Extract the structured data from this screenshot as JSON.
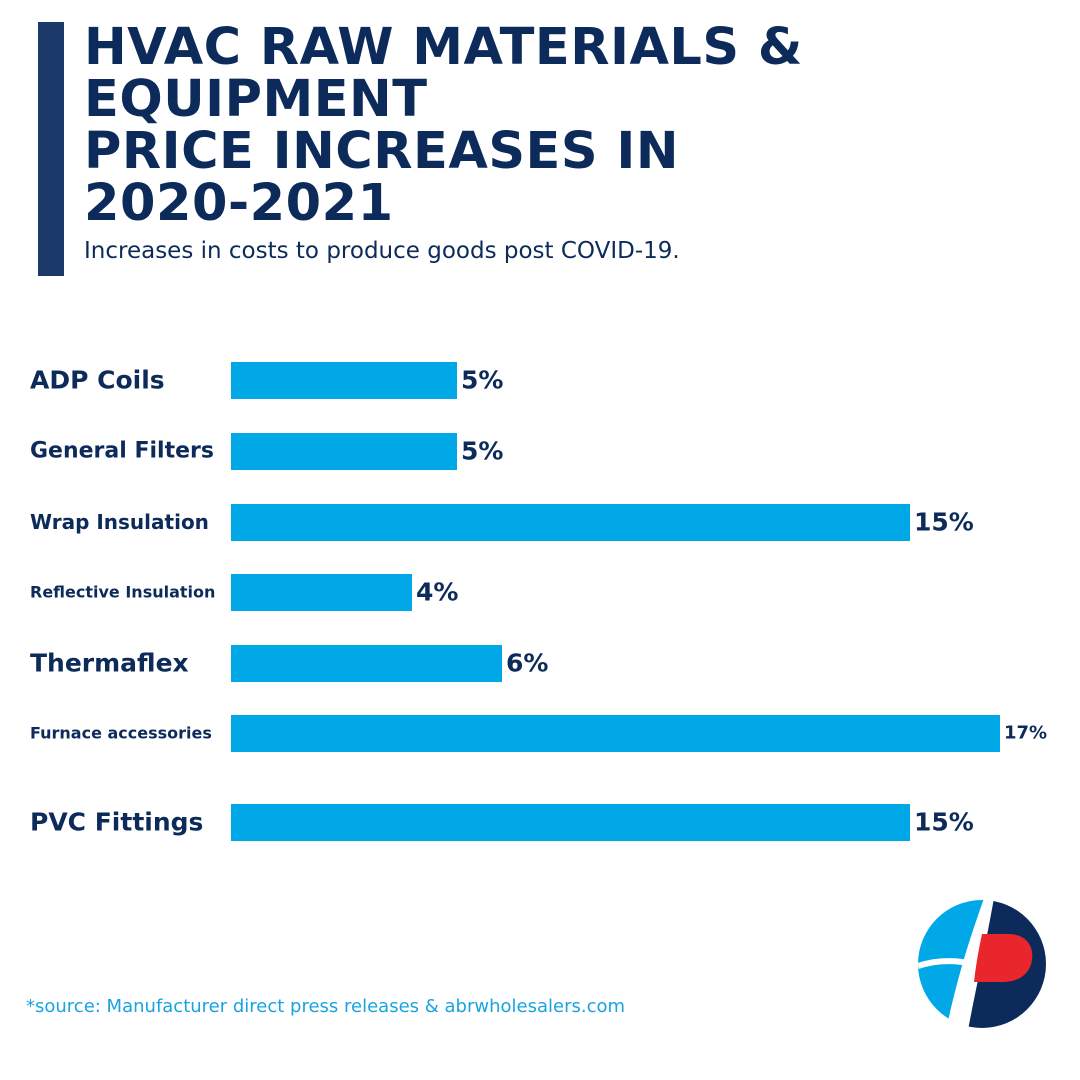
{
  "header": {
    "title_lines": [
      "HVAC RAW MATERIALS &",
      "EQUIPMENT",
      "PRICE INCREASES IN",
      "2020-2021"
    ],
    "subtitle": "Increases in costs to produce goods post COVID-19."
  },
  "chart_data": {
    "type": "bar",
    "orientation": "horizontal",
    "title": "HVAC RAW MATERIALS & EQUIPMENT PRICE INCREASES IN 2020-2021",
    "subtitle": "Increases in costs to produce goods post COVID-19.",
    "categories": [
      "ADP Coils",
      "General Filters",
      "Wrap Insulation",
      "Reflective Insulation",
      "Thermaflex",
      "Furnace accessories",
      "PVC Fittings"
    ],
    "values": [
      5,
      5,
      15,
      4,
      6,
      17,
      15
    ],
    "value_labels": [
      "5%",
      "5%",
      "15%",
      "4%",
      "6%",
      "17%",
      "15%"
    ],
    "unit": "%",
    "bar_color": "#00a8e8",
    "xlim": [
      0,
      17
    ],
    "grid": false,
    "legend": "none"
  },
  "footer": {
    "source": "*source: Manufacturer direct press releases & abrwholesalers.com"
  },
  "logo": {
    "icon": "abr-p-logo",
    "colors": [
      "#00a8e8",
      "#0d2b5a",
      "#e8262c"
    ]
  }
}
